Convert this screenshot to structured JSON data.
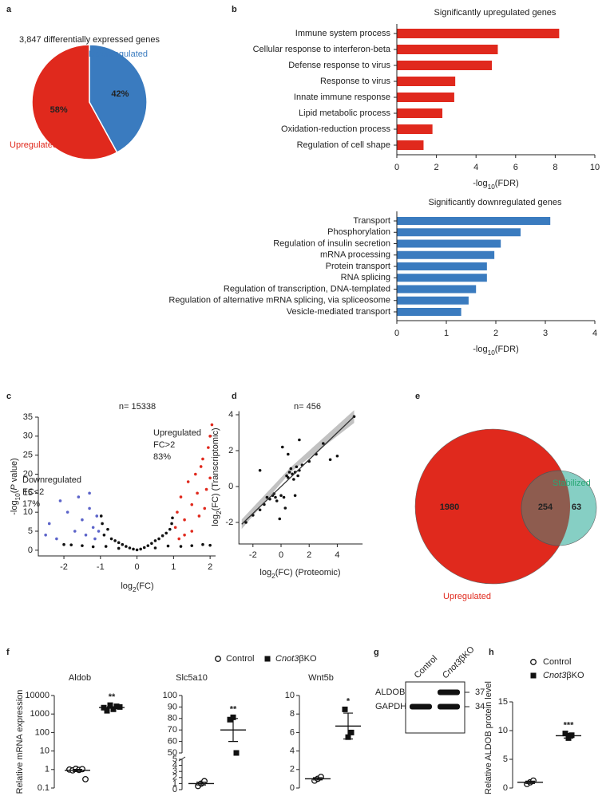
{
  "chart_data": [
    {
      "type": "pie",
      "panel": "a",
      "title": "3,847 differentially expressed genes",
      "categories": [
        "Upregulated",
        "Downregulated"
      ],
      "values": [
        58,
        42
      ],
      "value_labels": [
        "58%",
        "42%"
      ],
      "colors": [
        "#e0291d",
        "#3a7bbf"
      ]
    },
    {
      "type": "hbar",
      "panel": "b",
      "title": "Significantly upregulated genes",
      "categories": [
        "Immune system process",
        "Cellular response to interferon-beta",
        "Defense response to virus",
        "Response to virus",
        "Innate immune response",
        "Lipid metabolic process",
        "Oxidation-reduction process",
        "Regulation of cell shape"
      ],
      "values": [
        8.2,
        5.1,
        4.8,
        2.95,
        2.9,
        2.3,
        1.8,
        1.35
      ],
      "color": "#e0291d",
      "xlim": [
        0,
        10
      ],
      "xticks": [
        0,
        2,
        4,
        6,
        8,
        10
      ],
      "xlabel": {
        "pre": "-log",
        "sub": "10",
        "post": "(FDR)"
      }
    },
    {
      "type": "hbar",
      "title": "Significantly downregulated genes",
      "categories": [
        "Transport",
        "Phosphorylation",
        "Regulation of insulin secretion",
        "mRNA processing",
        "Protein transport",
        "RNA splicing",
        "Regulation of transcription, DNA-templated",
        "Regulation of alternative mRNA splicing, via spliceosome",
        "Vesicle-mediated transport"
      ],
      "values": [
        3.1,
        2.5,
        2.1,
        1.97,
        1.82,
        1.82,
        1.6,
        1.45,
        1.3
      ],
      "color": "#3a7bbf",
      "xlim": [
        0,
        4
      ],
      "xticks": [
        0,
        1,
        2,
        3,
        4
      ],
      "xlabel": {
        "pre": "-log",
        "sub": "10",
        "post": "(FDR)"
      }
    },
    {
      "type": "scatter",
      "panel": "c",
      "title": "n= 15338",
      "annotations": [
        [
          "Upregulated",
          "FC>2",
          "83%"
        ],
        [
          "Downregulated",
          "FC<2",
          "17%"
        ]
      ],
      "xlim": [
        -2.7,
        2.15
      ],
      "xticks": [
        -2,
        -1,
        0,
        1,
        2
      ],
      "ylim": [
        -1.5,
        35
      ],
      "yticks": [
        0,
        5,
        10,
        15,
        20,
        25,
        30,
        35
      ],
      "xlabel": {
        "pre": "log",
        "sub": "2",
        "post": "(FC)"
      },
      "ylabel": {
        "pre": "-log",
        "sub": "10",
        "post": "(",
        "italic": "P",
        "tail": " value)"
      },
      "series": [
        {
          "color": "#111111",
          "x": [
            -0.95,
            -0.9,
            -0.8,
            -0.7,
            -0.6,
            -0.5,
            -0.4,
            -0.3,
            -0.2,
            -0.1,
            0,
            0.1,
            0.2,
            0.3,
            0.4,
            0.5,
            0.6,
            0.7,
            0.8,
            0.9,
            0.95,
            -0.98,
            0.97,
            -1.5,
            1.5,
            -2,
            2,
            -0.85,
            0.85,
            -0.5,
            0.5,
            1.2,
            -1.2,
            1.8,
            -1.8
          ],
          "y": [
            7,
            4,
            5.5,
            3,
            2.5,
            2,
            1.5,
            1,
            0.6,
            0.3,
            0.1,
            0.3,
            0.7,
            1.2,
            1.8,
            2.5,
            3,
            3.8,
            4.5,
            5.5,
            7,
            9,
            8.5,
            1.2,
            1.2,
            1.5,
            1.3,
            1,
            1.1,
            0.5,
            0.6,
            1,
            0.9,
            1.5,
            1.4
          ]
        },
        {
          "color": "#5b63c9",
          "x": [
            -1.1,
            -1.2,
            -1.3,
            -1.4,
            -1.5,
            -1.6,
            -1.7,
            -1.9,
            -2.1,
            -2.2,
            -2.4,
            -1.15,
            -1.05,
            -1.3,
            -2.5
          ],
          "y": [
            9,
            6,
            11,
            4,
            8,
            14,
            5,
            10,
            13,
            3,
            7,
            3,
            5,
            15,
            4
          ]
        },
        {
          "color": "#e0291d",
          "x": [
            1.05,
            1.1,
            1.2,
            1.3,
            1.4,
            1.5,
            1.6,
            1.7,
            1.8,
            1.9,
            2.0,
            2.05,
            1.95,
            1.75,
            1.3,
            1.5,
            1.15,
            1.65,
            1.85,
            2.0
          ],
          "y": [
            6,
            10,
            14,
            8,
            18,
            12,
            20,
            9,
            24,
            16,
            30,
            33,
            27,
            22,
            4,
            5,
            3,
            15,
            11,
            19
          ]
        }
      ]
    },
    {
      "type": "scatter",
      "panel": "d",
      "title": "n= 456",
      "xlim": [
        -3,
        5.8
      ],
      "xticks": [
        -2,
        0,
        2,
        4
      ],
      "ylim": [
        -3.2,
        4.2
      ],
      "yticks": [
        -2,
        0,
        2,
        4
      ],
      "xlabel": {
        "pre": "log",
        "sub": "2",
        "post": "(FC) (Proteomic)"
      },
      "ylabel": {
        "pre": "log",
        "sub": "2",
        "post": "(FC) (Transcriptomic)"
      },
      "fit": {
        "x": [
          -2.8,
          5.2
        ],
        "y": [
          -2.1,
          3.9
        ]
      },
      "series": [
        {
          "color": "#111111",
          "x": [
            0.5,
            0.8,
            1,
            1.2,
            0.7,
            0.9,
            1.1,
            0.6,
            1.3,
            0.4,
            1.5,
            2,
            2.5,
            3,
            3.5,
            4,
            -0.4,
            -0.6,
            -0.3,
            -0.8,
            -0.5,
            -1,
            -1.2,
            -1.5,
            -2,
            -2.5,
            0,
            0.2,
            0.3,
            -0.1,
            0.1,
            0.5,
            1,
            -1.5,
            5.2,
            1.3
          ],
          "y": [
            0.5,
            0.7,
            0.8,
            0.6,
            1,
            0.4,
            1.1,
            0.8,
            0.9,
            0.6,
            1.2,
            1.4,
            1.8,
            2.4,
            1.5,
            1.7,
            -0.6,
            -0.5,
            -0.8,
            -0.7,
            -0.4,
            -0.6,
            -1,
            -1.3,
            -1.6,
            -2,
            -0.5,
            -0.6,
            -1.2,
            -1.8,
            2.2,
            1.8,
            -0.5,
            0.9,
            3.9,
            2.6
          ]
        }
      ]
    },
    {
      "type": "venn",
      "panel": "e",
      "sets": [
        {
          "name": "Upregulated",
          "color": "#e0291d"
        },
        {
          "name": "Stabilized",
          "color": "#86cfc4",
          "label_color": "#2aa774"
        }
      ],
      "overlap_color": "#8e5c4f",
      "values": [
        1980,
        254,
        63
      ]
    },
    {
      "type": "dotplot",
      "panel": "f",
      "title": "Aldob",
      "ylabel": "Relative mRNA expression",
      "legend": [
        "Control",
        {
          "italic": "Cnot3",
          "post": "βKO"
        }
      ],
      "log": true,
      "ylim": [
        0.1,
        10000
      ],
      "yticks": [
        0.1,
        1,
        10,
        100,
        1000,
        10000
      ],
      "significance": "**",
      "series": [
        {
          "values": [
            1.0,
            0.9,
            1.1,
            0.95,
            1.05,
            0.3
          ],
          "mean": 0.9,
          "error": 0.12
        },
        {
          "values": [
            2200,
            1500,
            3000,
            1800,
            2600,
            2400
          ],
          "mean": 2250,
          "error": 220
        }
      ]
    },
    {
      "type": "dotplot",
      "title": "Slc5a10",
      "ylim_segments": [
        [
          0,
          5
        ],
        [
          50,
          100
        ]
      ],
      "yticks": [
        0,
        1,
        2,
        3,
        4,
        5,
        50,
        60,
        70,
        80,
        90,
        100
      ],
      "significance": "**",
      "series": [
        {
          "values": [
            0.6,
            1.0,
            1.4
          ],
          "mean": 1.0,
          "error": 0.23
        },
        {
          "values": [
            79,
            81,
            50
          ],
          "mean": 70,
          "error": 10
        }
      ]
    },
    {
      "type": "dotplot",
      "title": "Wnt5b",
      "ylim": [
        0,
        10
      ],
      "yticks": [
        0,
        2,
        4,
        6,
        8,
        10
      ],
      "significance": "*",
      "series": [
        {
          "values": [
            0.8,
            1.0,
            1.2
          ],
          "mean": 1.0,
          "error": 0.12
        },
        {
          "values": [
            8.5,
            5.5,
            6.0
          ],
          "mean": 6.7,
          "error": 1.4
        }
      ]
    },
    {
      "type": "blot",
      "panel": "g",
      "lanes": [
        "Control",
        {
          "italic": "Cnot3",
          "post": "βKO"
        }
      ],
      "bands": [
        {
          "name": "ALDOB",
          "size": 37,
          "detected": [
            false,
            true
          ]
        },
        {
          "name": "GAPDH",
          "size": 34,
          "detected": [
            true,
            true
          ]
        }
      ]
    },
    {
      "type": "dotplot",
      "panel": "h",
      "ylabel": "Relative ALDOB protein level",
      "legend": [
        "Control",
        {
          "italic": "Cnot3",
          "post": "βKO"
        }
      ],
      "ylim": [
        0,
        15
      ],
      "yticks": [
        0,
        5,
        10,
        15
      ],
      "significance": "***",
      "series": [
        {
          "values": [
            0.7,
            1.0,
            1.3
          ],
          "mean": 1.0,
          "error": 0.2
        },
        {
          "values": [
            9.5,
            8.7,
            9.2
          ],
          "mean": 9.1,
          "error": 0.4
        }
      ]
    }
  ]
}
